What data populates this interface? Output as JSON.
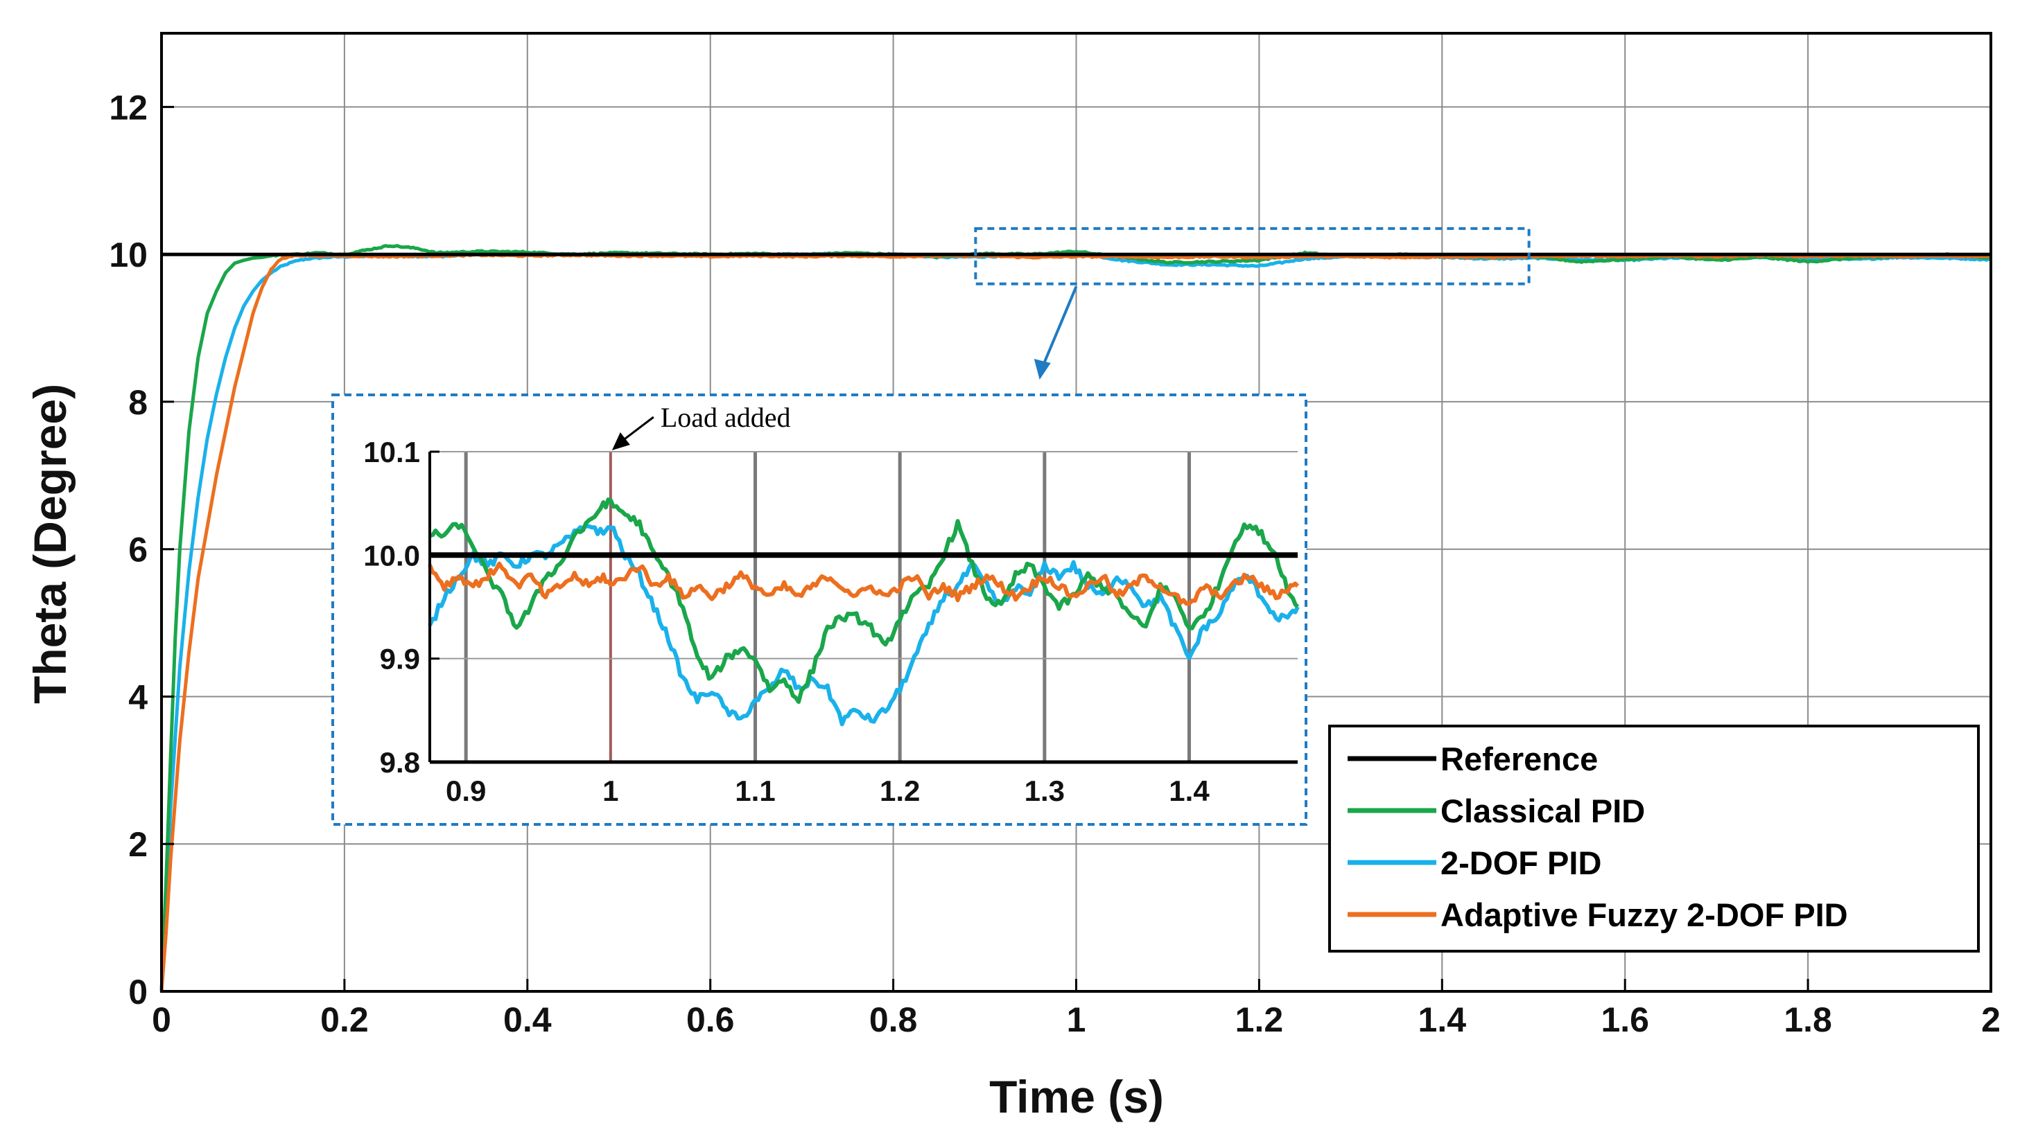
{
  "chart_data": {
    "type": "line",
    "title": "",
    "xlabel": "Time (s)",
    "ylabel": "Theta (Degree)",
    "xlim": [
      0,
      2
    ],
    "ylim": [
      0,
      13
    ],
    "xticks": [
      0,
      0.2,
      0.4,
      0.6,
      0.8,
      1,
      1.2,
      1.4,
      1.6,
      1.8,
      2
    ],
    "xtick_labels": [
      "0",
      "0.2",
      "0.4",
      "0.6",
      "0.8",
      "1",
      "1.2",
      "1.4",
      "1.6",
      "1.8",
      "2"
    ],
    "yticks": [
      0,
      2,
      4,
      6,
      8,
      10,
      12
    ],
    "ytick_labels": [
      "0",
      "2",
      "4",
      "6",
      "8",
      "10",
      "12"
    ],
    "grid": true,
    "legend_position": "bottom-right",
    "series": [
      {
        "name": "Reference",
        "color": "#000000",
        "x": [
          0,
          2
        ],
        "y": [
          10,
          10
        ]
      },
      {
        "name": "Classical PID",
        "color": "#1aa64a",
        "x": [
          0,
          0.005,
          0.01,
          0.015,
          0.02,
          0.03,
          0.04,
          0.05,
          0.06,
          0.07,
          0.08,
          0.09,
          0.1,
          0.11,
          0.12,
          0.13,
          0.14,
          0.15,
          0.17,
          0.2,
          0.22,
          0.25,
          0.28,
          0.3,
          0.35,
          0.4,
          0.45,
          0.5,
          0.55,
          0.6,
          0.65,
          0.7,
          0.75,
          0.8,
          0.85,
          0.9,
          0.95,
          1.0,
          1.05,
          1.1,
          1.15,
          1.2,
          1.25,
          1.3,
          1.35,
          1.4,
          1.45,
          1.5,
          1.55,
          1.6,
          1.65,
          1.7,
          1.75,
          1.8,
          1.85,
          1.9,
          1.95,
          2.0
        ],
        "y": [
          0,
          1.5,
          3.2,
          4.8,
          6.0,
          7.6,
          8.6,
          9.2,
          9.5,
          9.75,
          9.88,
          9.92,
          9.95,
          9.96,
          9.98,
          9.99,
          10.0,
          10.0,
          10.02,
          10.0,
          10.05,
          10.12,
          10.08,
          10.02,
          10.04,
          10.03,
          10.0,
          10.02,
          10.01,
          10.0,
          10.01,
          9.99,
          10.02,
          10.0,
          9.97,
          10.01,
          10.0,
          10.04,
          9.96,
          9.89,
          9.9,
          9.92,
          10.02,
          9.97,
          10.0,
          9.98,
          9.96,
          9.97,
          9.9,
          9.93,
          9.97,
          9.92,
          9.96,
          9.9,
          9.95,
          9.97,
          10.0,
          9.95
        ]
      },
      {
        "name": "2-DOF PID",
        "color": "#1ab1ea",
        "x": [
          0,
          0.005,
          0.01,
          0.02,
          0.03,
          0.04,
          0.05,
          0.06,
          0.07,
          0.08,
          0.09,
          0.1,
          0.11,
          0.12,
          0.13,
          0.14,
          0.15,
          0.16,
          0.18,
          0.2,
          0.25,
          0.3,
          0.35,
          0.4,
          0.45,
          0.5,
          0.55,
          0.6,
          0.65,
          0.7,
          0.75,
          0.8,
          0.85,
          0.9,
          0.95,
          1.0,
          1.05,
          1.1,
          1.15,
          1.2,
          1.25,
          1.3,
          1.35,
          1.4,
          1.45,
          1.5,
          1.55,
          1.6,
          1.65,
          1.7,
          1.75,
          1.8,
          1.85,
          1.9,
          1.95,
          2.0
        ],
        "y": [
          0,
          1.2,
          2.5,
          4.4,
          5.7,
          6.7,
          7.5,
          8.1,
          8.6,
          9.0,
          9.3,
          9.5,
          9.65,
          9.75,
          9.83,
          9.88,
          9.92,
          9.94,
          9.96,
          9.97,
          9.98,
          9.97,
          10.0,
          10.01,
          10.0,
          10.01,
          10.0,
          9.99,
          10.0,
          10.0,
          10.01,
          10.0,
          9.96,
          9.97,
          9.99,
          10.02,
          9.92,
          9.86,
          9.86,
          9.84,
          9.94,
          9.97,
          9.97,
          9.96,
          9.94,
          9.95,
          9.93,
          9.92,
          9.95,
          9.94,
          9.96,
          9.95,
          9.93,
          9.96,
          9.95,
          9.93
        ]
      },
      {
        "name": "Adaptive Fuzzy 2-DOF PID",
        "color": "#ec6f1f",
        "x": [
          0,
          0.005,
          0.01,
          0.02,
          0.03,
          0.04,
          0.05,
          0.06,
          0.07,
          0.08,
          0.09,
          0.1,
          0.11,
          0.12,
          0.13,
          0.14,
          0.15,
          0.17,
          0.2,
          0.25,
          0.3,
          0.35,
          0.4,
          0.45,
          0.5,
          0.55,
          0.6,
          0.65,
          0.7,
          0.75,
          0.8,
          0.85,
          0.9,
          0.95,
          1.0,
          1.05,
          1.1,
          1.15,
          1.2,
          1.25,
          1.3,
          1.35,
          1.4,
          1.45,
          1.5,
          1.55,
          1.6,
          1.65,
          1.7,
          1.75,
          1.8,
          1.85,
          1.9,
          1.95,
          2.0
        ],
        "y": [
          0,
          0.8,
          1.8,
          3.4,
          4.6,
          5.6,
          6.3,
          7.0,
          7.6,
          8.2,
          8.7,
          9.2,
          9.55,
          9.8,
          9.93,
          9.97,
          9.99,
          9.98,
          9.98,
          9.97,
          9.98,
          9.99,
          9.98,
          9.99,
          9.98,
          9.98,
          9.97,
          9.98,
          9.97,
          9.98,
          9.97,
          9.98,
          9.98,
          9.96,
          9.97,
          9.97,
          9.96,
          9.97,
          9.96,
          9.97,
          9.97,
          9.96,
          9.97,
          9.96,
          9.97,
          9.98,
          9.97,
          9.98,
          9.97,
          9.99,
          9.97,
          9.98,
          9.97,
          9.98,
          9.97
        ]
      }
    ],
    "inset": {
      "annotation": "Load added",
      "xlim": [
        0.875,
        1.475
      ],
      "ylim": [
        9.8,
        10.1
      ],
      "xticks": [
        0.9,
        1,
        1.1,
        1.2,
        1.3,
        1.4
      ],
      "xtick_labels": [
        "0.9",
        "1",
        "1.1",
        "1.2",
        "1.3",
        "1.4"
      ],
      "yticks": [
        9.8,
        9.9,
        10.0,
        10.1
      ],
      "ytick_labels": [
        "9.8",
        "9.9",
        "10.0",
        "10.1"
      ],
      "load_time": 1.0,
      "series": [
        {
          "name": "Reference",
          "x": [
            0.875,
            1.475
          ],
          "y": [
            10.0,
            10.0
          ]
        },
        {
          "name": "Classical PID",
          "x": [
            0.875,
            0.885,
            0.895,
            0.905,
            0.915,
            0.925,
            0.935,
            0.945,
            0.955,
            0.965,
            0.975,
            0.985,
            0.995,
            1.0,
            1.01,
            1.02,
            1.03,
            1.04,
            1.05,
            1.06,
            1.07,
            1.08,
            1.09,
            1.1,
            1.11,
            1.12,
            1.13,
            1.14,
            1.15,
            1.16,
            1.17,
            1.18,
            1.19,
            1.2,
            1.21,
            1.22,
            1.23,
            1.24,
            1.25,
            1.26,
            1.27,
            1.28,
            1.29,
            1.3,
            1.31,
            1.32,
            1.33,
            1.34,
            1.35,
            1.36,
            1.37,
            1.38,
            1.39,
            1.4,
            1.41,
            1.42,
            1.43,
            1.44,
            1.45,
            1.46,
            1.47,
            1.475
          ],
          "y": [
            10.02,
            10.02,
            10.03,
            10.01,
            9.98,
            9.96,
            9.93,
            9.95,
            9.98,
            9.99,
            10.02,
            10.03,
            10.05,
            10.05,
            10.04,
            10.03,
            10.0,
            9.98,
            9.95,
            9.9,
            9.88,
            9.9,
            9.91,
            9.9,
            9.87,
            9.88,
            9.86,
            9.89,
            9.93,
            9.94,
            9.94,
            9.93,
            9.91,
            9.94,
            9.96,
            9.97,
            10.0,
            10.03,
            9.99,
            9.96,
            9.95,
            9.98,
            9.99,
            9.97,
            9.95,
            9.96,
            9.98,
            9.97,
            9.96,
            9.94,
            9.93,
            9.97,
            9.96,
            9.93,
            9.94,
            9.97,
            10.01,
            10.03,
            10.02,
            10.0,
            9.96,
            9.95
          ]
        },
        {
          "name": "2-DOF PID",
          "x": [
            0.875,
            0.885,
            0.895,
            0.905,
            0.915,
            0.925,
            0.935,
            0.945,
            0.955,
            0.965,
            0.975,
            0.985,
            0.995,
            1.0,
            1.01,
            1.02,
            1.03,
            1.04,
            1.05,
            1.06,
            1.07,
            1.08,
            1.09,
            1.1,
            1.11,
            1.12,
            1.13,
            1.14,
            1.15,
            1.16,
            1.17,
            1.18,
            1.19,
            1.2,
            1.21,
            1.22,
            1.23,
            1.24,
            1.25,
            1.26,
            1.27,
            1.28,
            1.29,
            1.3,
            1.31,
            1.32,
            1.33,
            1.34,
            1.35,
            1.36,
            1.37,
            1.38,
            1.39,
            1.4,
            1.41,
            1.42,
            1.43,
            1.44,
            1.45,
            1.46,
            1.47,
            1.475
          ],
          "y": [
            9.93,
            9.96,
            9.98,
            10.0,
            9.99,
            10.0,
            9.99,
            10.0,
            10.0,
            10.01,
            10.02,
            10.03,
            10.02,
            10.03,
            10.0,
            9.98,
            9.95,
            9.92,
            9.88,
            9.86,
            9.87,
            9.85,
            9.84,
            9.86,
            9.87,
            9.89,
            9.87,
            9.88,
            9.87,
            9.84,
            9.85,
            9.84,
            9.85,
            9.87,
            9.9,
            9.93,
            9.96,
            9.97,
            9.99,
            9.97,
            9.95,
            9.97,
            9.96,
            9.99,
            9.98,
            9.99,
            9.97,
            9.96,
            9.98,
            9.97,
            9.95,
            9.96,
            9.93,
            9.9,
            9.93,
            9.94,
            9.97,
            9.98,
            9.96,
            9.94,
            9.94,
            9.95
          ]
        },
        {
          "name": "Adaptive Fuzzy 2-DOF PID",
          "x": [
            0.875,
            0.885,
            0.895,
            0.905,
            0.915,
            0.925,
            0.935,
            0.945,
            0.955,
            0.965,
            0.975,
            0.985,
            0.995,
            1.0,
            1.01,
            1.02,
            1.03,
            1.04,
            1.05,
            1.06,
            1.07,
            1.08,
            1.09,
            1.1,
            1.11,
            1.12,
            1.13,
            1.14,
            1.15,
            1.16,
            1.17,
            1.18,
            1.19,
            1.2,
            1.21,
            1.22,
            1.23,
            1.24,
            1.25,
            1.26,
            1.27,
            1.28,
            1.29,
            1.3,
            1.31,
            1.32,
            1.33,
            1.34,
            1.35,
            1.36,
            1.37,
            1.38,
            1.39,
            1.4,
            1.41,
            1.42,
            1.43,
            1.44,
            1.45,
            1.46,
            1.47,
            1.475
          ],
          "y": [
            9.99,
            9.97,
            9.98,
            9.97,
            9.98,
            9.99,
            9.97,
            9.98,
            9.96,
            9.97,
            9.98,
            9.97,
            9.98,
            9.97,
            9.98,
            9.99,
            9.97,
            9.98,
            9.96,
            9.97,
            9.96,
            9.97,
            9.98,
            9.97,
            9.96,
            9.97,
            9.96,
            9.97,
            9.98,
            9.97,
            9.96,
            9.97,
            9.96,
            9.97,
            9.98,
            9.96,
            9.97,
            9.96,
            9.97,
            9.98,
            9.97,
            9.96,
            9.97,
            9.98,
            9.97,
            9.96,
            9.97,
            9.98,
            9.96,
            9.97,
            9.98,
            9.97,
            9.96,
            9.95,
            9.97,
            9.96,
            9.97,
            9.98,
            9.97,
            9.96,
            9.97,
            9.97
          ]
        }
      ]
    }
  }
}
